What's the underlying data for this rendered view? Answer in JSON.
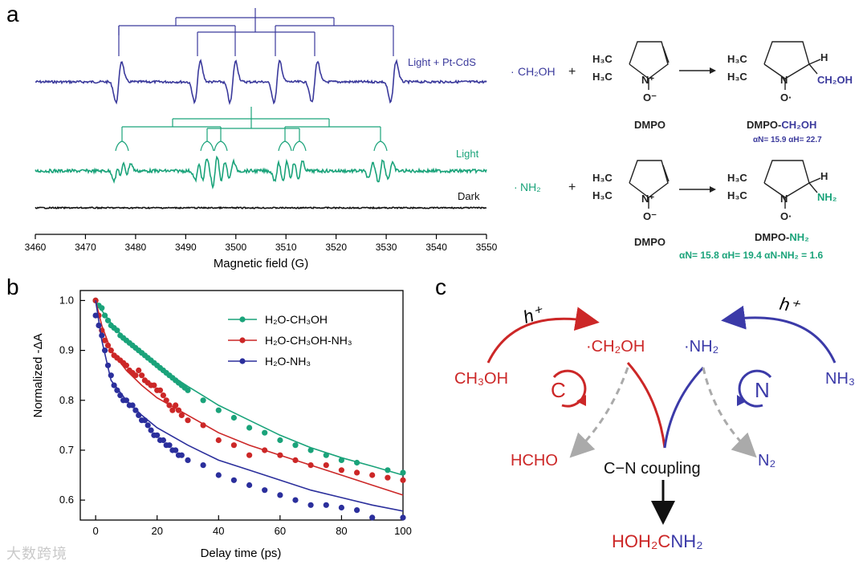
{
  "panel_labels": {
    "a": "a",
    "b": "b",
    "c": "c"
  },
  "colors": {
    "purple": "#3b3a9c",
    "green": "#1aa37a",
    "red": "#cc2727",
    "black": "#111111",
    "gray": "#aaaaaa"
  },
  "panel_a": {
    "xlabel": "Magnetic field (G)",
    "xticks": [
      "3460",
      "3470",
      "3480",
      "3490",
      "3500",
      "3510",
      "3520",
      "3530",
      "3540",
      "3550"
    ],
    "xlim": [
      3460,
      3550
    ],
    "traces": [
      {
        "name": "Light + Pt-CdS",
        "color": "#3b3a9c"
      },
      {
        "name": "Light",
        "color": "#1aa37a"
      },
      {
        "name": "Dark",
        "color": "#111111"
      }
    ]
  },
  "reactions": {
    "r1": {
      "radical_dot": "·",
      "radical": "CH₂OH",
      "plus": "+",
      "reagent": "DMPO",
      "product_prefix": "DMPO-",
      "product_suffix": "CH₂OH",
      "product_group": "CH₂OH",
      "hfc": "αN= 15.9  αH= 22.7"
    },
    "r2": {
      "radical_dot": "·",
      "radical": "NH₂",
      "plus": "+",
      "reagent": "DMPO",
      "product_prefix": "DMPO-",
      "product_suffix": "NH₂",
      "product_group": "NH₂",
      "hfc": "αN= 15.8  αH= 19.4  αN-NH₂ = 1.6"
    },
    "atoms": {
      "h3c_top": "H₃C",
      "h3c_bottom": "H₃C",
      "n_plus": "N⁺",
      "n": "N",
      "o_minus": "O⁻",
      "o_dot": "O·",
      "h": "H"
    }
  },
  "chart_data": {
    "type": "scatter",
    "xlabel": "Delay time (ps)",
    "ylabel": "Normalized -ΔA",
    "xlim": [
      -5,
      100
    ],
    "ylim": [
      0.56,
      1.02
    ],
    "xticks": [
      0,
      20,
      40,
      60,
      80,
      100
    ],
    "yticks": [
      0.6,
      0.7,
      0.8,
      0.9,
      1.0
    ],
    "legend_position": "top-right",
    "series": [
      {
        "name": "H₂O-CH₃OH",
        "color": "#1aa37a",
        "points": [
          [
            0,
            1.0
          ],
          [
            1,
            0.99
          ],
          [
            2,
            0.985
          ],
          [
            3,
            0.97
          ],
          [
            4,
            0.96
          ],
          [
            5,
            0.95
          ],
          [
            6,
            0.945
          ],
          [
            7,
            0.94
          ],
          [
            8,
            0.93
          ],
          [
            9,
            0.925
          ],
          [
            10,
            0.92
          ],
          [
            11,
            0.915
          ],
          [
            12,
            0.91
          ],
          [
            13,
            0.905
          ],
          [
            14,
            0.9
          ],
          [
            15,
            0.895
          ],
          [
            16,
            0.89
          ],
          [
            17,
            0.885
          ],
          [
            18,
            0.88
          ],
          [
            19,
            0.875
          ],
          [
            20,
            0.87
          ],
          [
            21,
            0.865
          ],
          [
            22,
            0.86
          ],
          [
            23,
            0.855
          ],
          [
            24,
            0.85
          ],
          [
            25,
            0.845
          ],
          [
            26,
            0.84
          ],
          [
            27,
            0.835
          ],
          [
            28,
            0.83
          ],
          [
            29,
            0.825
          ],
          [
            30,
            0.82
          ],
          [
            35,
            0.8
          ],
          [
            40,
            0.78
          ],
          [
            45,
            0.765
          ],
          [
            50,
            0.745
          ],
          [
            55,
            0.735
          ],
          [
            60,
            0.72
          ],
          [
            65,
            0.71
          ],
          [
            70,
            0.7
          ],
          [
            75,
            0.69
          ],
          [
            80,
            0.68
          ],
          [
            85,
            0.675
          ],
          [
            95,
            0.66
          ],
          [
            100,
            0.655
          ]
        ],
        "fit": [
          [
            0,
            1.0
          ],
          [
            2,
            0.98
          ],
          [
            5,
            0.955
          ],
          [
            10,
            0.92
          ],
          [
            15,
            0.893
          ],
          [
            20,
            0.868
          ],
          [
            30,
            0.828
          ],
          [
            40,
            0.79
          ],
          [
            50,
            0.76
          ],
          [
            60,
            0.73
          ],
          [
            70,
            0.705
          ],
          [
            80,
            0.685
          ],
          [
            90,
            0.668
          ],
          [
            100,
            0.65
          ]
        ]
      },
      {
        "name": "H₂O-CH₃OH-NH₃",
        "color": "#cc2727",
        "points": [
          [
            0,
            1.0
          ],
          [
            1,
            0.97
          ],
          [
            2,
            0.94
          ],
          [
            3,
            0.92
          ],
          [
            4,
            0.91
          ],
          [
            5,
            0.9
          ],
          [
            6,
            0.89
          ],
          [
            7,
            0.885
          ],
          [
            8,
            0.88
          ],
          [
            9,
            0.875
          ],
          [
            10,
            0.87
          ],
          [
            11,
            0.86
          ],
          [
            12,
            0.855
          ],
          [
            13,
            0.85
          ],
          [
            14,
            0.86
          ],
          [
            15,
            0.85
          ],
          [
            16,
            0.84
          ],
          [
            17,
            0.835
          ],
          [
            18,
            0.83
          ],
          [
            19,
            0.83
          ],
          [
            20,
            0.82
          ],
          [
            21,
            0.82
          ],
          [
            22,
            0.81
          ],
          [
            23,
            0.8
          ],
          [
            24,
            0.79
          ],
          [
            25,
            0.78
          ],
          [
            26,
            0.79
          ],
          [
            27,
            0.78
          ],
          [
            28,
            0.77
          ],
          [
            30,
            0.76
          ],
          [
            35,
            0.75
          ],
          [
            40,
            0.72
          ],
          [
            45,
            0.71
          ],
          [
            50,
            0.69
          ],
          [
            55,
            0.7
          ],
          [
            60,
            0.69
          ],
          [
            65,
            0.68
          ],
          [
            70,
            0.67
          ],
          [
            75,
            0.67
          ],
          [
            80,
            0.66
          ],
          [
            85,
            0.655
          ],
          [
            90,
            0.65
          ],
          [
            95,
            0.645
          ],
          [
            100,
            0.64
          ]
        ],
        "fit": [
          [
            0,
            1.0
          ],
          [
            2,
            0.95
          ],
          [
            5,
            0.9
          ],
          [
            10,
            0.86
          ],
          [
            15,
            0.83
          ],
          [
            20,
            0.805
          ],
          [
            30,
            0.77
          ],
          [
            40,
            0.735
          ],
          [
            50,
            0.71
          ],
          [
            60,
            0.69
          ],
          [
            70,
            0.67
          ],
          [
            80,
            0.65
          ],
          [
            90,
            0.63
          ],
          [
            100,
            0.61
          ]
        ]
      },
      {
        "name": "H₂O-NH₃",
        "color": "#2b2f9c",
        "points": [
          [
            0,
            0.97
          ],
          [
            1,
            0.95
          ],
          [
            2,
            0.93
          ],
          [
            3,
            0.9
          ],
          [
            4,
            0.87
          ],
          [
            5,
            0.85
          ],
          [
            6,
            0.83
          ],
          [
            7,
            0.82
          ],
          [
            8,
            0.81
          ],
          [
            9,
            0.8
          ],
          [
            10,
            0.8
          ],
          [
            11,
            0.79
          ],
          [
            12,
            0.79
          ],
          [
            13,
            0.78
          ],
          [
            14,
            0.77
          ],
          [
            15,
            0.76
          ],
          [
            16,
            0.76
          ],
          [
            17,
            0.75
          ],
          [
            18,
            0.74
          ],
          [
            19,
            0.73
          ],
          [
            20,
            0.73
          ],
          [
            21,
            0.72
          ],
          [
            22,
            0.72
          ],
          [
            23,
            0.71
          ],
          [
            24,
            0.71
          ],
          [
            25,
            0.7
          ],
          [
            26,
            0.7
          ],
          [
            27,
            0.69
          ],
          [
            28,
            0.69
          ],
          [
            30,
            0.68
          ],
          [
            35,
            0.67
          ],
          [
            40,
            0.65
          ],
          [
            45,
            0.64
          ],
          [
            50,
            0.63
          ],
          [
            55,
            0.62
          ],
          [
            60,
            0.61
          ],
          [
            65,
            0.6
          ],
          [
            70,
            0.59
          ],
          [
            75,
            0.59
          ],
          [
            80,
            0.585
          ],
          [
            85,
            0.58
          ],
          [
            90,
            0.565
          ],
          [
            100,
            0.565
          ]
        ],
        "fit": [
          [
            0,
            1.0
          ],
          [
            2,
            0.92
          ],
          [
            5,
            0.84
          ],
          [
            10,
            0.8
          ],
          [
            15,
            0.77
          ],
          [
            20,
            0.745
          ],
          [
            30,
            0.71
          ],
          [
            40,
            0.68
          ],
          [
            50,
            0.66
          ],
          [
            60,
            0.64
          ],
          [
            70,
            0.62
          ],
          [
            80,
            0.605
          ],
          [
            90,
            0.59
          ],
          [
            100,
            0.578
          ]
        ]
      }
    ]
  },
  "panel_c": {
    "h_plus": "h⁺",
    "methanol": "CH₃OH",
    "ch2oh_radical": "·CH₂OH",
    "nh2_radical": "·NH₂",
    "ammonia": "NH₃",
    "cycle_c": "C",
    "cycle_n": "N",
    "hcho": "HCHO",
    "coupling": "C−N coupling",
    "n2": "N₂",
    "product_red": "HOH₂C",
    "product_blue": "NH₂"
  },
  "watermark": "大数跨境"
}
